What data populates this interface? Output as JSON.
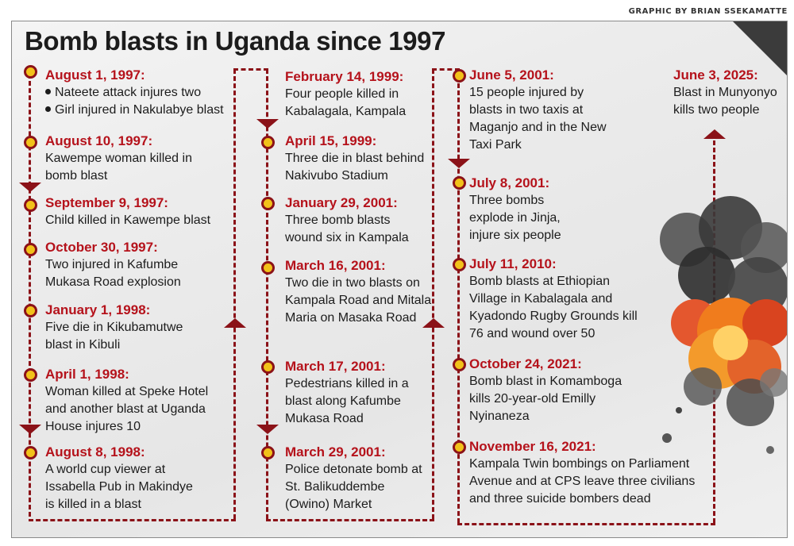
{
  "credit": "GRAPHIC BY BRIAN SSEKAMATTE",
  "title": "Bomb blasts in Uganda since 1997",
  "events": [
    {
      "date": "August 1, 1997:",
      "items": [
        "Nateete attack injures two",
        "Girl injured in Nakulabye blast"
      ]
    },
    {
      "date": "August 10, 1997:",
      "text": "Kawempe woman killed in bomb blast"
    },
    {
      "date": "September 9, 1997:",
      "text": "Child killed in Kawempe blast"
    },
    {
      "date": "October 30, 1997:",
      "text": "Two injured in Kafumbe Mukasa Road explosion"
    },
    {
      "date": "January 1, 1998:",
      "text": "Five die in Kikubamutwe blast in Kibuli"
    },
    {
      "date": "April 1, 1998:",
      "text": "Woman killed at Speke Hotel and another blast at Uganda House injures 10"
    },
    {
      "date": "August 8, 1998:",
      "text": "A world cup viewer at Issabella Pub in Makindye is killed in a blast"
    },
    {
      "date": "February 14, 1999:",
      "text": "Four people killed in Kabalagala, Kampala"
    },
    {
      "date": "April 15, 1999:",
      "text": "Three die in blast behind Nakivubo Stadium"
    },
    {
      "date": "January 29, 2001:",
      "text": "Three bomb blasts wound six in Kampala"
    },
    {
      "date": "March 16, 2001:",
      "text": "Two die in two blasts on Kampala Road and Mitala Maria on Masaka Road"
    },
    {
      "date": "March 17, 2001:",
      "text": "Pedestrians killed in a blast along Kafumbe Mukasa Road"
    },
    {
      "date": "March 29, 2001:",
      "text": "Police detonate bomb at St. Balikuddembe (Owino) Market"
    },
    {
      "date": "June 5, 2001:",
      "text": "15 people injured by blasts in two taxis at Maganjo and in the New Taxi Park"
    },
    {
      "date": "July 8, 2001:",
      "text": "Three bombs explode in Jinja, injure six people"
    },
    {
      "date": "July 11, 2010:",
      "text": "Bomb blasts at Ethiopian Village in Kabalagala and Kyadondo Rugby Grounds kill 76 and wound over 50"
    },
    {
      "date": "October 24, 2021:",
      "text": "Bomb blast in Komamboga kills 20-year-old Emilly Nyinaneza"
    },
    {
      "date": "November 16, 2021:",
      "text": "Kampala Twin bombings on Parliament Avenue and at CPS leave three civilians and three suicide bombers dead"
    },
    {
      "date": "June 3, 2025:",
      "text": "Blast in Munyonyo kills two people"
    }
  ],
  "colors": {
    "accent": "#b5121b",
    "line": "#8b1218",
    "dot": "#f2c21a",
    "text": "#1c1c1c"
  }
}
